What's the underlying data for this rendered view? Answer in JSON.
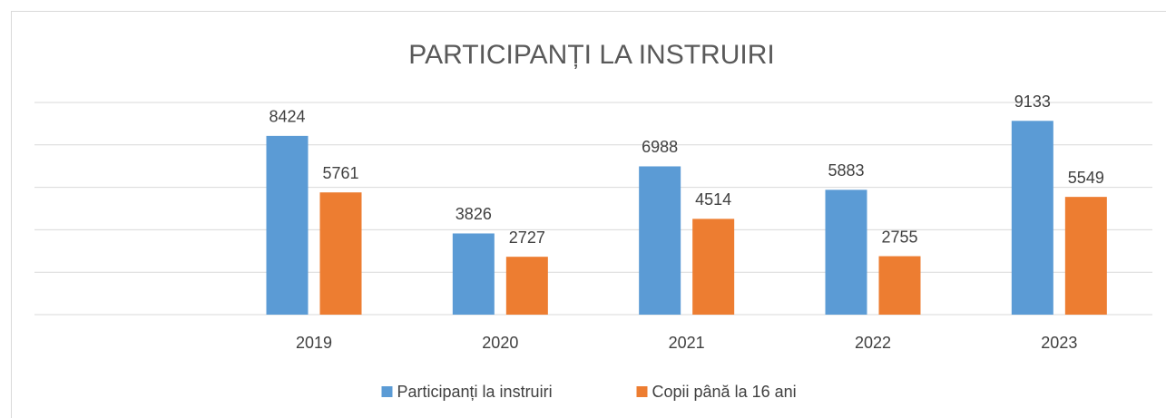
{
  "chart_data": {
    "type": "bar",
    "title": "PARTICIPANȚI LA INSTRUIRI",
    "categories": [
      null,
      "2019",
      "2020",
      "2021",
      "2022",
      "2023"
    ],
    "series": [
      {
        "name": "Participanți la instruiri",
        "color": "#5b9bd5",
        "values": [
          null,
          8424,
          3826,
          6988,
          5883,
          9133
        ]
      },
      {
        "name": "Copii până la 16 ani",
        "color": "#ed7d31",
        "values": [
          null,
          5761,
          2727,
          4514,
          2755,
          5549
        ]
      }
    ],
    "ylim": [
      0,
      10000
    ],
    "yticks": [
      0,
      2000,
      4000,
      6000,
      8000,
      10000
    ],
    "grid": true,
    "legend": "bottom"
  }
}
